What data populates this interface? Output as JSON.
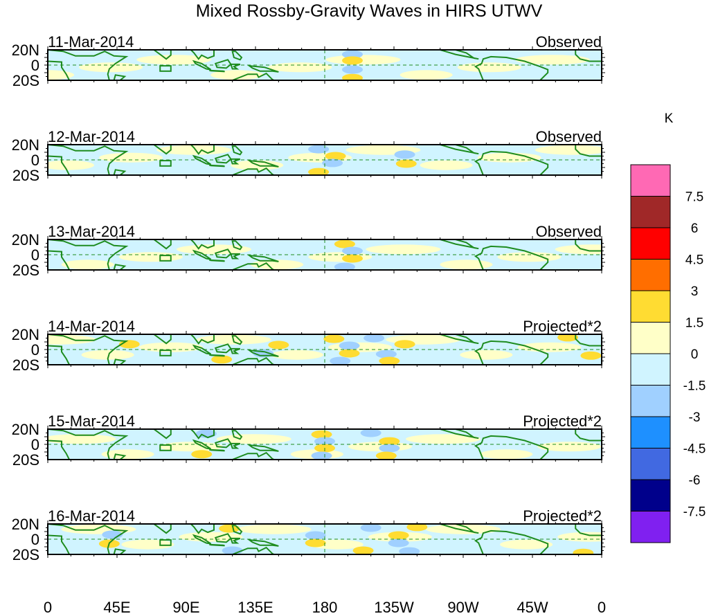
{
  "chart_data": {
    "type": "heatmap",
    "title": "Mixed Rossby-Gravity Waves in HIRS UTWV",
    "units": "K",
    "xlabel": "",
    "ylabel": "",
    "x_range": [
      0,
      360
    ],
    "y_range": [
      -20,
      20
    ],
    "x_ticks": [
      {
        "value": 0,
        "label": "0"
      },
      {
        "value": 45,
        "label": "45E"
      },
      {
        "value": 90,
        "label": "90E"
      },
      {
        "value": 135,
        "label": "135E"
      },
      {
        "value": 180,
        "label": "180"
      },
      {
        "value": 225,
        "label": "135W"
      },
      {
        "value": 270,
        "label": "90W"
      },
      {
        "value": 315,
        "label": "45W"
      },
      {
        "value": 360,
        "label": "0"
      }
    ],
    "y_ticks": [
      {
        "value": 20,
        "label": "20N"
      },
      {
        "value": 0,
        "label": "0"
      },
      {
        "value": -20,
        "label": "20S"
      }
    ],
    "reference_lines": {
      "equator_lat": 0,
      "dateline_lon": 180
    },
    "colorbar": {
      "label": "K",
      "levels": [
        "7.5",
        "6",
        "4.5",
        "3",
        "1.5",
        "0",
        "-1.5",
        "-3",
        "-4.5",
        "-6",
        "-7.5"
      ],
      "colors": [
        "#ff69b4",
        "#a02828",
        "#ff0000",
        "#ff6e00",
        "#ffdc32",
        "#ffffc8",
        "#d0f4ff",
        "#a0d0ff",
        "#1e90ff",
        "#4169e1",
        "#00008b",
        "#8020f0"
      ]
    },
    "panels": [
      {
        "date": "11-Mar-2014",
        "type": "Observed",
        "anomalies": [
          {
            "lon": 198,
            "lat": 14,
            "value": -2
          },
          {
            "lon": 198,
            "lat": 6,
            "value": 2
          },
          {
            "lon": 198,
            "lat": -6,
            "value": -2
          },
          {
            "lon": 198,
            "lat": -17,
            "value": 2
          }
        ]
      },
      {
        "date": "12-Mar-2014",
        "type": "Observed",
        "anomalies": [
          {
            "lon": 176,
            "lat": 14,
            "value": -2
          },
          {
            "lon": 187,
            "lat": 5,
            "value": 2
          },
          {
            "lon": 232,
            "lat": 7,
            "value": -2
          },
          {
            "lon": 185,
            "lat": -4,
            "value": -2
          },
          {
            "lon": 233,
            "lat": -5,
            "value": 2
          },
          {
            "lon": 176,
            "lat": -16,
            "value": 2
          }
        ]
      },
      {
        "date": "13-Mar-2014",
        "type": "Observed",
        "anomalies": [
          {
            "lon": 193,
            "lat": 14,
            "value": 2
          },
          {
            "lon": 198,
            "lat": 5,
            "value": -2
          },
          {
            "lon": 198,
            "lat": -5,
            "value": 2
          },
          {
            "lon": 193,
            "lat": -16,
            "value": -2
          }
        ]
      },
      {
        "date": "14-Mar-2014",
        "type": "Projected*2",
        "anomalies": [
          {
            "lon": 53,
            "lat": 7,
            "value": 2
          },
          {
            "lon": 150,
            "lat": 6,
            "value": 2
          },
          {
            "lon": 186,
            "lat": 14,
            "value": 2
          },
          {
            "lon": 212,
            "lat": 15,
            "value": -2
          },
          {
            "lon": 196,
            "lat": 5,
            "value": -2
          },
          {
            "lon": 232,
            "lat": 7,
            "value": 2
          },
          {
            "lon": 140,
            "lat": -5,
            "value": -2
          },
          {
            "lon": 196,
            "lat": -5,
            "value": 2
          },
          {
            "lon": 220,
            "lat": -6,
            "value": -2
          },
          {
            "lon": 113,
            "lat": -13,
            "value": 2
          },
          {
            "lon": 190,
            "lat": -15,
            "value": -2
          },
          {
            "lon": 222,
            "lat": -15,
            "value": 2
          },
          {
            "lon": 338,
            "lat": 16,
            "value": 2
          },
          {
            "lon": 353,
            "lat": -8,
            "value": 2
          }
        ]
      },
      {
        "date": "15-Mar-2014",
        "type": "Projected*2",
        "anomalies": [
          {
            "lon": 103,
            "lat": 14,
            "value": -2
          },
          {
            "lon": 178,
            "lat": 13,
            "value": 2
          },
          {
            "lon": 210,
            "lat": 15,
            "value": -2
          },
          {
            "lon": 180,
            "lat": 4,
            "value": -2
          },
          {
            "lon": 222,
            "lat": 4,
            "value": 2
          },
          {
            "lon": 180,
            "lat": -5,
            "value": 2
          },
          {
            "lon": 222,
            "lat": -5,
            "value": -2
          },
          {
            "lon": 100,
            "lat": -13,
            "value": 2
          },
          {
            "lon": 178,
            "lat": -15,
            "value": -2
          },
          {
            "lon": 220,
            "lat": -15,
            "value": 2
          }
        ]
      },
      {
        "date": "16-Mar-2014",
        "type": "Projected*2",
        "anomalies": [
          {
            "lon": 42,
            "lat": 6,
            "value": -2
          },
          {
            "lon": 118,
            "lat": 14,
            "value": 2
          },
          {
            "lon": 174,
            "lat": 5,
            "value": -2
          },
          {
            "lon": 210,
            "lat": 15,
            "value": -2
          },
          {
            "lon": 240,
            "lat": 16,
            "value": 2
          },
          {
            "lon": 228,
            "lat": 5,
            "value": 2
          },
          {
            "lon": 40,
            "lat": -6,
            "value": 2
          },
          {
            "lon": 174,
            "lat": -5,
            "value": 2
          },
          {
            "lon": 228,
            "lat": -5,
            "value": -2
          },
          {
            "lon": 120,
            "lat": -15,
            "value": -2
          },
          {
            "lon": 205,
            "lat": -15,
            "value": 2
          },
          {
            "lon": 235,
            "lat": -16,
            "value": -2
          },
          {
            "lon": 348,
            "lat": -18,
            "value": 2
          }
        ]
      }
    ]
  }
}
